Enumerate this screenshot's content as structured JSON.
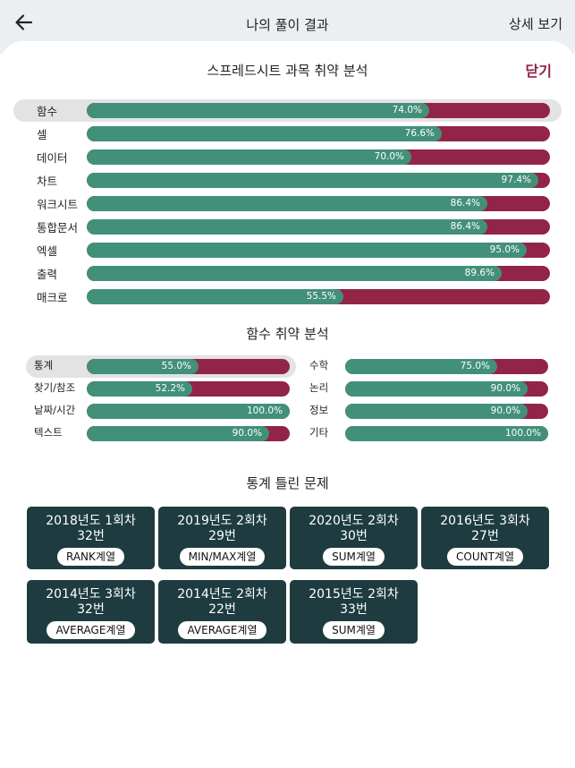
{
  "header": {
    "title": "나의 풀이 결과",
    "detail_label": "상세 보기"
  },
  "sheet": {
    "title": "스프레드시트 과목 취약 분석",
    "close_label": "닫기"
  },
  "colors": {
    "correct": "#42907a",
    "wrong": "#922448",
    "card": "#1e3c3f",
    "close": "#8e2244"
  },
  "subject_rows": [
    {
      "label": "함수",
      "value": "74.0%",
      "percent": 74.0,
      "selected": true
    },
    {
      "label": "셀",
      "value": "76.6%",
      "percent": 76.6
    },
    {
      "label": "데이터",
      "value": "70.0%",
      "percent": 70.0
    },
    {
      "label": "차트",
      "value": "97.4%",
      "percent": 97.4
    },
    {
      "label": "워크시트",
      "value": "86.4%",
      "percent": 86.4
    },
    {
      "label": "통합문서",
      "value": "86.4%",
      "percent": 86.4
    },
    {
      "label": "엑셀",
      "value": "95.0%",
      "percent": 95.0
    },
    {
      "label": "출력",
      "value": "89.6%",
      "percent": 89.6
    },
    {
      "label": "매크로",
      "value": "55.5%",
      "percent": 55.5
    }
  ],
  "function_section": {
    "title": "함수 취약 분석",
    "left_rows": [
      {
        "label": "통계",
        "value": "55.0%",
        "percent": 55.0,
        "selected": true
      },
      {
        "label": "찾기/참조",
        "value": "52.2%",
        "percent": 52.2
      },
      {
        "label": "날짜/시간",
        "value": "100.0%",
        "percent": 100.0
      },
      {
        "label": "텍스트",
        "value": "90.0%",
        "percent": 90.0
      }
    ],
    "right_rows": [
      {
        "label": "수학",
        "value": "75.0%",
        "percent": 75.0
      },
      {
        "label": "논리",
        "value": "90.0%",
        "percent": 90.0
      },
      {
        "label": "정보",
        "value": "90.0%",
        "percent": 90.0
      },
      {
        "label": "기타",
        "value": "100.0%",
        "percent": 100.0
      }
    ]
  },
  "wrong_section": {
    "title": "통계 틀린 문제",
    "cards": [
      {
        "title": "2018년도 1회차",
        "number": "32번",
        "tag": "RANK계열"
      },
      {
        "title": "2019년도 2회차",
        "number": "29번",
        "tag": "MIN/MAX계열"
      },
      {
        "title": "2020년도 2회차",
        "number": "30번",
        "tag": "SUM계열"
      },
      {
        "title": "2016년도 3회차",
        "number": "27번",
        "tag": "COUNT계열"
      },
      {
        "title": "2014년도 3회차",
        "number": "32번",
        "tag": "AVERAGE계열"
      },
      {
        "title": "2014년도 2회차",
        "number": "22번",
        "tag": "AVERAGE계열"
      },
      {
        "title": "2015년도 2회차",
        "number": "33번",
        "tag": "SUM계열"
      }
    ]
  }
}
